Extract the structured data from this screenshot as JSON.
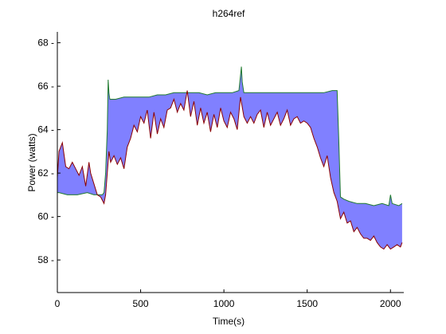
{
  "chart_data": {
    "type": "area",
    "title": "h264ref",
    "xlabel": "Time(s)",
    "ylabel": "Power (watts)",
    "xlim": [
      0,
      2080
    ],
    "ylim": [
      56.5,
      68.5
    ],
    "xticks": [
      "0",
      "500",
      "1000",
      "1500",
      "2000"
    ],
    "xtick_values": [
      0,
      500,
      1000,
      1500,
      2000
    ],
    "yticks": [
      "58",
      "60",
      "62",
      "64",
      "66",
      "68"
    ],
    "ytick_values": [
      58,
      60,
      62,
      64,
      66,
      68
    ],
    "grid": false,
    "legend": "none",
    "colors": {
      "upper_line": "#1f7a2e",
      "fill": "#8080ff",
      "lower_line": "#8b0000"
    },
    "series": [
      {
        "role": "upper",
        "x": [
          0,
          10,
          60,
          120,
          180,
          220,
          250,
          270,
          280,
          290,
          300,
          305,
          310,
          315,
          320,
          350,
          400,
          450,
          500,
          550,
          600,
          650,
          700,
          750,
          800,
          850,
          900,
          950,
          1000,
          1050,
          1090,
          1100,
          1105,
          1110,
          1120,
          1150,
          1200,
          1250,
          1300,
          1350,
          1400,
          1450,
          1500,
          1550,
          1600,
          1650,
          1680,
          1690,
          1700,
          1720,
          1750,
          1800,
          1850,
          1900,
          1950,
          1990,
          2000,
          2010,
          2050,
          2070
        ],
        "y": [
          61.1,
          61.1,
          61.0,
          61.0,
          61.1,
          61.0,
          61.0,
          61.0,
          61.1,
          62.0,
          64.0,
          66.3,
          65.7,
          65.4,
          65.4,
          65.4,
          65.5,
          65.5,
          65.5,
          65.5,
          65.6,
          65.6,
          65.7,
          65.7,
          65.7,
          65.7,
          65.6,
          65.7,
          65.7,
          65.7,
          65.8,
          66.5,
          66.9,
          66.2,
          65.7,
          65.7,
          65.7,
          65.7,
          65.7,
          65.7,
          65.7,
          65.7,
          65.7,
          65.7,
          65.7,
          65.8,
          65.8,
          63.5,
          60.9,
          60.8,
          60.7,
          60.6,
          60.6,
          60.5,
          60.6,
          60.5,
          61.0,
          60.6,
          60.5,
          60.6
        ]
      },
      {
        "role": "lower",
        "x": [
          0,
          10,
          30,
          50,
          70,
          90,
          110,
          130,
          150,
          170,
          190,
          200,
          220,
          240,
          260,
          280,
          290,
          300,
          310,
          320,
          340,
          360,
          380,
          400,
          420,
          440,
          460,
          480,
          500,
          520,
          540,
          560,
          580,
          600,
          620,
          640,
          660,
          680,
          700,
          720,
          740,
          760,
          780,
          800,
          820,
          840,
          860,
          880,
          900,
          920,
          940,
          960,
          980,
          1000,
          1020,
          1040,
          1060,
          1080,
          1100,
          1120,
          1140,
          1160,
          1180,
          1200,
          1220,
          1240,
          1260,
          1280,
          1300,
          1320,
          1340,
          1360,
          1380,
          1400,
          1420,
          1440,
          1460,
          1480,
          1500,
          1520,
          1540,
          1560,
          1580,
          1600,
          1620,
          1640,
          1660,
          1680,
          1700,
          1720,
          1740,
          1760,
          1780,
          1800,
          1820,
          1840,
          1860,
          1880,
          1900,
          1920,
          1940,
          1960,
          1980,
          2000,
          2020,
          2040,
          2060,
          2070
        ],
        "y": [
          61.8,
          63.0,
          63.4,
          62.3,
          62.2,
          62.5,
          62.2,
          61.9,
          62.3,
          61.4,
          62.5,
          62.0,
          61.5,
          61.0,
          60.9,
          60.6,
          61.0,
          62.0,
          63.0,
          62.5,
          62.8,
          62.4,
          62.7,
          62.2,
          63.2,
          63.6,
          64.2,
          63.9,
          64.6,
          64.3,
          64.9,
          63.6,
          64.8,
          63.8,
          64.5,
          64.1,
          64.9,
          65.0,
          65.4,
          64.8,
          65.2,
          64.9,
          65.8,
          64.6,
          65.3,
          64.2,
          65.0,
          64.3,
          64.8,
          63.9,
          64.7,
          64.1,
          65.0,
          64.4,
          64.1,
          64.8,
          64.5,
          64.0,
          65.5,
          64.6,
          64.3,
          64.6,
          64.3,
          64.7,
          64.9,
          64.1,
          64.8,
          64.2,
          64.5,
          64.8,
          64.2,
          64.5,
          64.9,
          64.2,
          64.5,
          64.6,
          64.3,
          64.4,
          64.3,
          64.1,
          63.6,
          63.2,
          62.7,
          62.3,
          62.8,
          61.8,
          61.1,
          60.7,
          59.9,
          60.2,
          59.7,
          59.8,
          59.3,
          59.5,
          59.2,
          59.0,
          59.0,
          58.9,
          59.1,
          58.8,
          58.6,
          58.5,
          58.7,
          58.5,
          58.6,
          58.7,
          58.6,
          58.8
        ]
      }
    ]
  }
}
